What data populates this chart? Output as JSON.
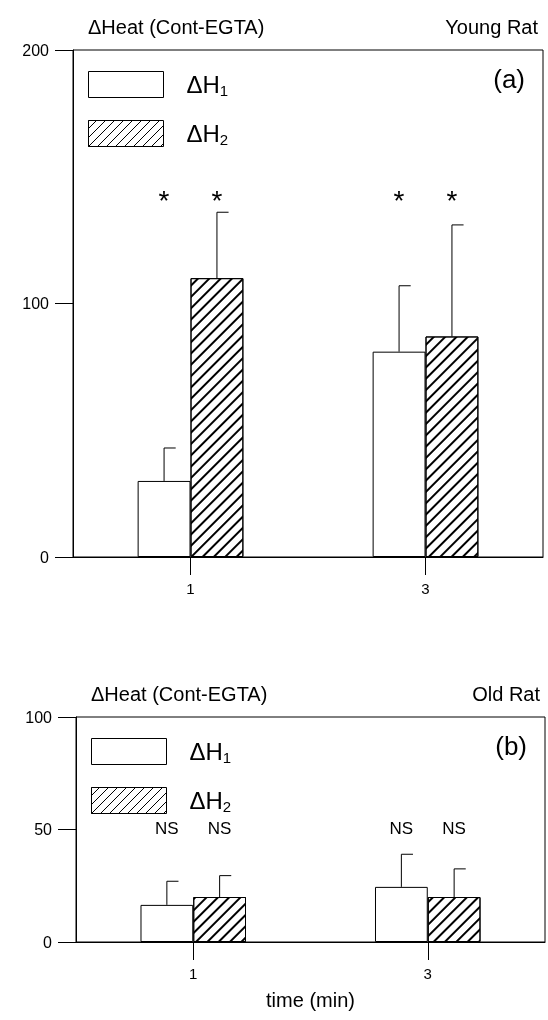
{
  "chart_data": [
    {
      "type": "bar",
      "title": "Young Rat",
      "ylabel": "ΔHeat (Cont-EGTA)",
      "categories": [
        "1",
        "3"
      ],
      "series": [
        {
          "name": "ΔH$_{1}$",
          "color": "#ffffff",
          "values": [
            30,
            81
          ],
          "errors": [
            [
              30,
              43
            ],
            [
              81,
              107
            ]
          ]
        },
        {
          "name": "ΔH$_{2}$",
          "color": "#ffffff",
          "values": [
            110,
            87
          ],
          "errors": [
            [
              110,
              136
            ],
            [
              87,
              131
            ]
          ]
        }
      ],
      "ylim": [
        0,
        200
      ],
      "yticks": [
        0,
        100,
        200
      ],
      "grid": false,
      "legend": "top left",
      "annotations": [
        "(a)",
        "*",
        "*",
        "*",
        "*"
      ]
    },
    {
      "type": "bar",
      "title": "Old Rat",
      "ylabel": "ΔHeat (Cont-EGTA)",
      "xlabel": "time (min)",
      "categories": [
        "1",
        "3"
      ],
      "series": [
        {
          "name": "ΔH$_{1}$",
          "color": "#ffffff",
          "values": [
            16.5,
            24.5
          ],
          "errors": [
            [
              16.5,
              27
            ],
            [
              24.5,
              39
            ]
          ]
        },
        {
          "name": "ΔH$_{2}$",
          "color": "#ffffff",
          "values": [
            20,
            20
          ],
          "errors": [
            [
              20,
              29.5
            ],
            [
              20,
              32.5
            ]
          ]
        }
      ],
      "ylim": [
        0,
        100
      ],
      "yticks": [
        0,
        50,
        100
      ],
      "grid": false,
      "legend": "top left",
      "annotations": [
        "(b)",
        "NS",
        "NS",
        "NS",
        "NS"
      ]
    }
  ]
}
